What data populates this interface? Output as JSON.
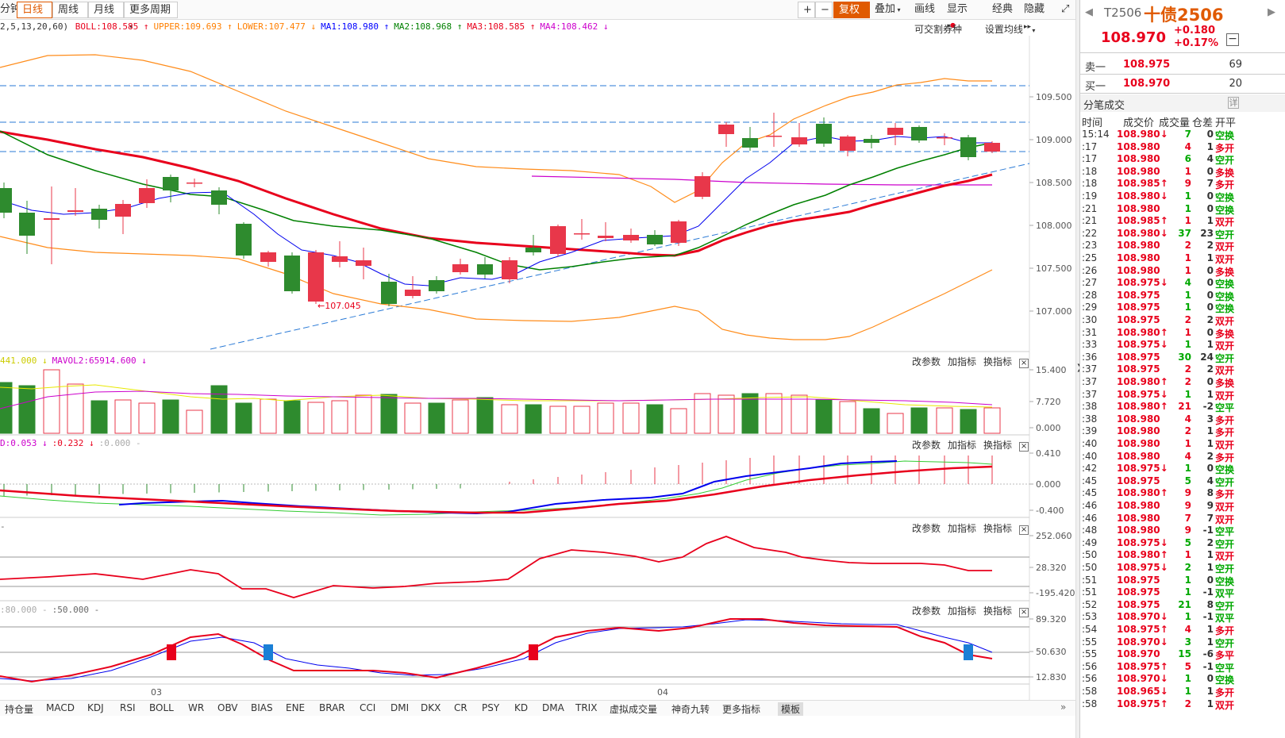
{
  "toolbar": {
    "left_tabs": [
      "分钟",
      "日线",
      "周线",
      "月线",
      "更多周期"
    ],
    "active_tab": "日线",
    "right_buttons": [
      "+",
      "−",
      "复权",
      "叠加",
      "画线",
      "显示",
      "经典",
      "隐藏"
    ]
  },
  "legend": {
    "params": "2,5,13,20,60)",
    "items": [
      {
        "label": "BOLL:108.585",
        "arrow": "↑",
        "color": "#e8001c"
      },
      {
        "label": "UPPER:109.693",
        "arrow": "↑",
        "color": "#ff7f00"
      },
      {
        "label": "LOWER:107.477",
        "arrow": "↓",
        "color": "#ff7f00"
      },
      {
        "label": "MA1:108.980",
        "arrow": "↑",
        "color": "#0000ff"
      },
      {
        "label": "MA2:108.968",
        "arrow": "↑",
        "color": "#008000"
      },
      {
        "label": "MA3:108.585",
        "arrow": "↑",
        "color": "#e8001c"
      },
      {
        "label": "MA4:108.462",
        "arrow": "↓",
        "color": "#cc00cc"
      }
    ],
    "right_links": [
      "可交割券种",
      "设置均线"
    ]
  },
  "main_axis": [
    "109.500",
    "109.000",
    "108.500",
    "108.000",
    "107.500",
    "107.000"
  ],
  "low_marker": "107.045",
  "vol_panel": {
    "legend": [
      {
        "label": "441.000",
        "arrow": "↓",
        "color": "#cccc00"
      },
      {
        "label": "MAVOL2:65914.600",
        "arrow": "↓",
        "color": "#cc00cc"
      }
    ],
    "axis": [
      "15.400",
      "7.720",
      "0.000"
    ]
  },
  "macd_panel": {
    "legend": [
      {
        "label": "D:0.053",
        "arrow": "↓",
        "color": "#cc00cc"
      },
      {
        "label": ":0.232",
        "arrow": "↓",
        "color": "#e8001c"
      },
      {
        "label": ":0.000",
        "arrow": "-",
        "color": "#aaaaaa"
      }
    ],
    "axis": [
      "0.410",
      "0.000",
      "-0.400"
    ]
  },
  "cci_panel": {
    "legend": [
      {
        "label": "-",
        "arrow": "",
        "color": "#666"
      }
    ],
    "axis": [
      "252.060",
      "28.320",
      "-195.420"
    ]
  },
  "kdj_panel": {
    "legend": [
      {
        "label": ":80.000",
        "arrow": "-",
        "color": "#aaa"
      },
      {
        "label": ":50.000",
        "arrow": "-",
        "color": "#666"
      }
    ],
    "axis": [
      "89.320",
      "50.630",
      "12.830"
    ]
  },
  "panel_controls": [
    "改参数",
    "加指标",
    "换指标"
  ],
  "date_labels": [
    "03",
    "04"
  ],
  "bottom_tabs": [
    "持仓量",
    "MACD",
    "KDJ",
    "RSI",
    "BOLL",
    "WR",
    "OBV",
    "BIAS",
    "ENE",
    "BRAR",
    "CCI",
    "DMI",
    "DKX",
    "CR",
    "PSY",
    "KD",
    "DMA",
    "TRIX",
    "虚拟成交量",
    "神奇九转",
    "更多指标",
    "模板"
  ],
  "sidebar": {
    "code": "T2506",
    "name": "十债2506",
    "price": "108.970",
    "change": "+0.180",
    "change_pct": "+0.17%",
    "sell1": {
      "label": "卖一",
      "price": "108.975",
      "vol": "69"
    },
    "buy1": {
      "label": "买一",
      "price": "108.970",
      "vol": "20"
    },
    "trades_title": "分笔成交",
    "trades_detail": "详",
    "headers": [
      "时间",
      "成交价",
      "成交量",
      "仓差",
      "开平"
    ],
    "trades": [
      [
        "15:14",
        "108.980↓",
        "7",
        "0",
        "空换",
        "d"
      ],
      [
        ":17",
        "108.980",
        "4",
        "1",
        "多开",
        "u"
      ],
      [
        ":17",
        "108.980",
        "6",
        "4",
        "空开",
        "d"
      ],
      [
        ":18",
        "108.980",
        "1",
        "0",
        "多换",
        "u"
      ],
      [
        ":18",
        "108.985↑",
        "9",
        "7",
        "多开",
        "u"
      ],
      [
        ":19",
        "108.980↓",
        "1",
        "0",
        "空换",
        "d"
      ],
      [
        ":21",
        "108.980",
        "1",
        "0",
        "空换",
        "d"
      ],
      [
        ":21",
        "108.985↑",
        "1",
        "1",
        "双开",
        "u"
      ],
      [
        ":22",
        "108.980↓",
        "37",
        "23",
        "空开",
        "d"
      ],
      [
        ":23",
        "108.980",
        "2",
        "2",
        "双开",
        "u"
      ],
      [
        ":25",
        "108.980",
        "1",
        "1",
        "双开",
        "u"
      ],
      [
        ":26",
        "108.980",
        "1",
        "0",
        "多换",
        "u"
      ],
      [
        ":27",
        "108.975↓",
        "4",
        "0",
        "空换",
        "d"
      ],
      [
        ":28",
        "108.975",
        "1",
        "0",
        "空换",
        "d"
      ],
      [
        ":29",
        "108.975",
        "1",
        "0",
        "空换",
        "d"
      ],
      [
        ":30",
        "108.975",
        "2",
        "2",
        "双开",
        "u"
      ],
      [
        ":31",
        "108.980↑",
        "1",
        "0",
        "多换",
        "u"
      ],
      [
        ":33",
        "108.975↓",
        "1",
        "1",
        "双开",
        "d"
      ],
      [
        ":36",
        "108.975",
        "30",
        "24",
        "空开",
        "d"
      ],
      [
        ":37",
        "108.975",
        "2",
        "2",
        "双开",
        "u"
      ],
      [
        ":37",
        "108.980↑",
        "2",
        "0",
        "多换",
        "u"
      ],
      [
        ":37",
        "108.975↓",
        "1",
        "1",
        "双开",
        "d"
      ],
      [
        ":38",
        "108.980↑",
        "21",
        "-2",
        "空平",
        "u"
      ],
      [
        ":38",
        "108.980",
        "4",
        "3",
        "多开",
        "u"
      ],
      [
        ":39",
        "108.980",
        "2",
        "1",
        "多开",
        "u"
      ],
      [
        ":40",
        "108.980",
        "1",
        "1",
        "双开",
        "u"
      ],
      [
        ":40",
        "108.980",
        "4",
        "2",
        "多开",
        "u"
      ],
      [
        ":42",
        "108.975↓",
        "1",
        "0",
        "空换",
        "d"
      ],
      [
        ":45",
        "108.975",
        "5",
        "4",
        "空开",
        "d"
      ],
      [
        ":45",
        "108.980↑",
        "9",
        "8",
        "多开",
        "u"
      ],
      [
        ":46",
        "108.980",
        "9",
        "9",
        "双开",
        "u"
      ],
      [
        ":46",
        "108.980",
        "7",
        "7",
        "双开",
        "u"
      ],
      [
        ":48",
        "108.980",
        "9",
        "-1",
        "空平",
        "u"
      ],
      [
        ":49",
        "108.975↓",
        "5",
        "2",
        "空开",
        "d"
      ],
      [
        ":50",
        "108.980↑",
        "1",
        "1",
        "双开",
        "u"
      ],
      [
        ":50",
        "108.975↓",
        "2",
        "1",
        "空开",
        "d"
      ],
      [
        ":51",
        "108.975",
        "1",
        "0",
        "空换",
        "d"
      ],
      [
        ":51",
        "108.975",
        "1",
        "-1",
        "双平",
        "d"
      ],
      [
        ":52",
        "108.975",
        "21",
        "8",
        "空开",
        "d"
      ],
      [
        ":53",
        "108.970↓",
        "1",
        "-1",
        "双平",
        "d"
      ],
      [
        ":54",
        "108.975↑",
        "4",
        "1",
        "多开",
        "u"
      ],
      [
        ":55",
        "108.970↓",
        "3",
        "1",
        "空开",
        "d"
      ],
      [
        ":55",
        "108.970",
        "15",
        "-6",
        "多平",
        "d"
      ],
      [
        ":56",
        "108.975↑",
        "5",
        "-1",
        "空平",
        "u"
      ],
      [
        ":56",
        "108.970↓",
        "1",
        "0",
        "空换",
        "d"
      ],
      [
        ":58",
        "108.965↓",
        "1",
        "1",
        "多开",
        "d"
      ],
      [
        ":58",
        "108.975↑",
        "2",
        "1",
        "双开",
        "u"
      ]
    ]
  }
}
